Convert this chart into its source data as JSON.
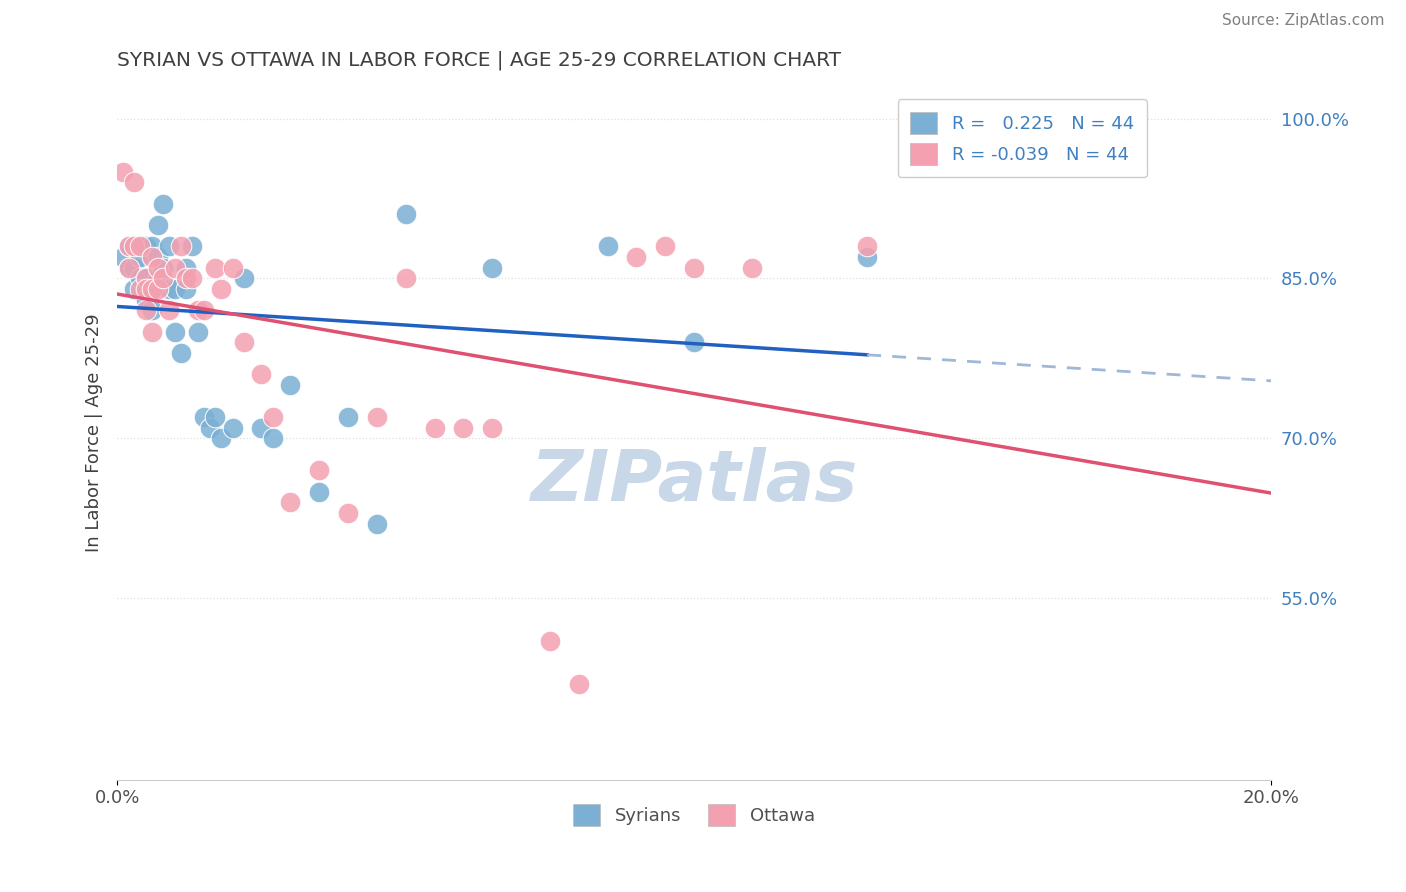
{
  "title": "SYRIAN VS OTTAWA IN LABOR FORCE | AGE 25-29 CORRELATION CHART",
  "source_text": "Source: ZipAtlas.com",
  "ylabel": "In Labor Force | Age 25-29",
  "xlim": [
    0.0,
    0.2
  ],
  "ylim": [
    0.38,
    1.03
  ],
  "right_yticks": [
    0.55,
    0.7,
    0.85,
    1.0
  ],
  "right_yticklabels": [
    "55.0%",
    "70.0%",
    "85.0%",
    "100.0%"
  ],
  "xtick_positions": [
    0.0,
    0.2
  ],
  "xticklabels": [
    "0.0%",
    "20.0%"
  ],
  "legend_blue_label": "R =   0.225   N = 44",
  "legend_pink_label": "R = -0.039   N = 44",
  "syrians_x": [
    0.001,
    0.002,
    0.002,
    0.003,
    0.003,
    0.004,
    0.004,
    0.005,
    0.005,
    0.005,
    0.006,
    0.006,
    0.006,
    0.007,
    0.007,
    0.007,
    0.008,
    0.008,
    0.009,
    0.009,
    0.01,
    0.01,
    0.011,
    0.012,
    0.012,
    0.013,
    0.014,
    0.015,
    0.016,
    0.017,
    0.018,
    0.02,
    0.022,
    0.025,
    0.027,
    0.03,
    0.035,
    0.04,
    0.045,
    0.05,
    0.065,
    0.085,
    0.1,
    0.13
  ],
  "syrians_y": [
    0.87,
    0.88,
    0.86,
    0.86,
    0.84,
    0.87,
    0.85,
    0.88,
    0.85,
    0.83,
    0.88,
    0.84,
    0.82,
    0.9,
    0.87,
    0.85,
    0.92,
    0.86,
    0.84,
    0.88,
    0.84,
    0.8,
    0.78,
    0.86,
    0.84,
    0.88,
    0.8,
    0.72,
    0.71,
    0.72,
    0.7,
    0.71,
    0.85,
    0.71,
    0.7,
    0.75,
    0.65,
    0.72,
    0.62,
    0.91,
    0.86,
    0.88,
    0.79,
    0.87
  ],
  "ottawa_x": [
    0.001,
    0.002,
    0.002,
    0.003,
    0.003,
    0.004,
    0.004,
    0.005,
    0.005,
    0.005,
    0.006,
    0.006,
    0.006,
    0.007,
    0.007,
    0.008,
    0.009,
    0.01,
    0.011,
    0.012,
    0.013,
    0.014,
    0.015,
    0.017,
    0.018,
    0.02,
    0.022,
    0.025,
    0.027,
    0.03,
    0.035,
    0.04,
    0.045,
    0.05,
    0.055,
    0.06,
    0.065,
    0.075,
    0.08,
    0.09,
    0.095,
    0.1,
    0.11,
    0.13
  ],
  "ottawa_y": [
    0.95,
    0.88,
    0.86,
    0.94,
    0.88,
    0.84,
    0.88,
    0.85,
    0.84,
    0.82,
    0.87,
    0.84,
    0.8,
    0.86,
    0.84,
    0.85,
    0.82,
    0.86,
    0.88,
    0.85,
    0.85,
    0.82,
    0.82,
    0.86,
    0.84,
    0.86,
    0.79,
    0.76,
    0.72,
    0.64,
    0.67,
    0.63,
    0.72,
    0.85,
    0.71,
    0.71,
    0.71,
    0.51,
    0.47,
    0.87,
    0.88,
    0.86,
    0.86,
    0.88
  ],
  "blue_color": "#7bafd4",
  "pink_color": "#f4a0b0",
  "blue_line_color": "#2060c0",
  "pink_line_color": "#e05070",
  "dashed_line_color": "#a0b8d8",
  "watermark_text": "ZIPatlas",
  "watermark_color": "#c8d8e8",
  "title_color": "#404040",
  "axis_label_color": "#404040",
  "right_tick_color": "#4080c0",
  "grid_color": "#e0e0e0",
  "source_color": "#808080"
}
